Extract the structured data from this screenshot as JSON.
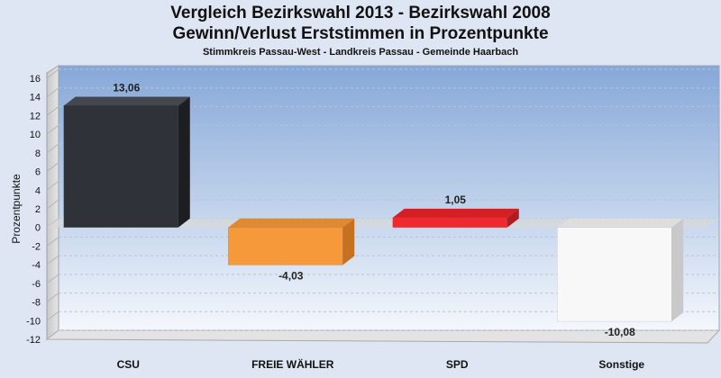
{
  "chart_data": {
    "type": "bar",
    "title": "Vergleich Bezirkswahl 2013 - Bezirkswahl 2008",
    "title2": "Gewinn/Verlust Erststimmen in Prozentpunkte",
    "subtitle": "Stimmkreis Passau-West - Landkreis Passau - Gemeinde Haarbach",
    "ylabel": "Prozentpunkte",
    "xlabel": "",
    "categories": [
      "CSU",
      "FREIE WÄHLER",
      "SPD",
      "Sonstige"
    ],
    "values": [
      13.06,
      -4.03,
      1.05,
      -10.08
    ],
    "value_labels": [
      "13,06",
      "-4,03",
      "1,05",
      "-10,08"
    ],
    "colors": [
      "#2f3238",
      "#f5993a",
      "#ee2a30",
      "#f8f8f8"
    ],
    "side_colors": [
      "#1c1e22",
      "#c57120",
      "#b11c20",
      "#c9c9c9"
    ],
    "top_colors": [
      "#44474e",
      "#e08a30",
      "#d22026",
      "#dedede"
    ],
    "ylim": [
      -12,
      16
    ],
    "yticks": [
      16,
      14,
      12,
      10,
      8,
      6,
      4,
      2,
      0,
      -2,
      -4,
      -6,
      -8,
      -10,
      -12
    ],
    "grid": true,
    "legend": "none",
    "style": "3d-bars"
  }
}
